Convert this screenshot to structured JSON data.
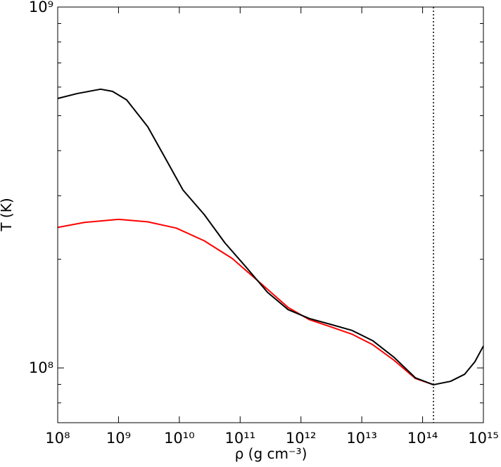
{
  "chart_data": {
    "type": "line",
    "xlabel": "ρ (g cm⁻³)",
    "ylabel": "T (K)",
    "xscale": "log",
    "yscale": "log",
    "xlim": [
      100000000.0,
      1000000000000000.0
    ],
    "ylim": [
      70500000.0,
      1000000000.0
    ],
    "xticks": [
      {
        "value": 100000000.0,
        "label": "10⁸"
      },
      {
        "value": 1000000000.0,
        "label": "10⁹"
      },
      {
        "value": 10000000000.0,
        "label": "10¹⁰"
      },
      {
        "value": 100000000000.0,
        "label": "10¹¹"
      },
      {
        "value": 1000000000000.0,
        "label": "10¹²"
      },
      {
        "value": 10000000000000.0,
        "label": "10¹³"
      },
      {
        "value": 100000000000000.0,
        "label": "10¹⁴"
      },
      {
        "value": 1000000000000000.0,
        "label": "10¹⁵"
      }
    ],
    "yticks": [
      {
        "value": 100000000.0,
        "label": "10⁸"
      },
      {
        "value": 1000000000.0,
        "label": "10⁹"
      }
    ],
    "yminor": [
      80000000.0,
      90000000.0,
      200000000.0,
      300000000.0,
      400000000.0,
      500000000.0,
      600000000.0,
      700000000.0,
      800000000.0,
      900000000.0
    ],
    "vline": 151000000000000.0,
    "series": [
      {
        "color": "#ff0000",
        "x": [
          100000000.0,
          275000000.0,
          1000000000.0,
          3020000000.0,
          8910000000.0,
          25700000000.0,
          74100000000.0,
          214000000000.0,
          617000000000.0,
          1380000000000.0,
          3090000000000.0,
          6920000000000.0,
          15100000000000.0,
          33900000000000.0,
          75900000000000.0,
          151000000000000.0
        ],
        "values": [
          245000000.0,
          253000000.0,
          258000000.0,
          254000000.0,
          244000000.0,
          225000000.0,
          201000000.0,
          172000000.0,
          147000000.0,
          136000000.0,
          130000000.0,
          124000000.0,
          116000000.0,
          105000000.0,
          93500000.0,
          89800000.0
        ]
      },
      {
        "color": "#000000",
        "x": [
          100000000.0,
          211000000.0,
          508000000.0,
          794000000.0,
          1360000000.0,
          3020000000.0,
          5890000000.0,
          11500000000.0,
          25700000000.0,
          56200000000.0,
          126000000000.0,
          282000000000.0,
          617000000000.0,
          1380000000000.0,
          3090000000000.0,
          6920000000000.0,
          15100000000000.0,
          33900000000000.0,
          75900000000000.0,
          151000000000000.0,
          288000000000000.0,
          490000000000000.0,
          724000000000000.0,
          1000000000000000.0
        ],
        "values": [
          558000000.0,
          576000000.0,
          592000000.0,
          584000000.0,
          553000000.0,
          466000000.0,
          381000000.0,
          311000000.0,
          266000000.0,
          222000000.0,
          190000000.0,
          162000000.0,
          145000000.0,
          137000000.0,
          132000000.0,
          127000000.0,
          119000000.0,
          107000000.0,
          93900000.0,
          89800000.0,
          91800000.0,
          96000000.0,
          104000000.0,
          115000000.0
        ]
      }
    ]
  }
}
